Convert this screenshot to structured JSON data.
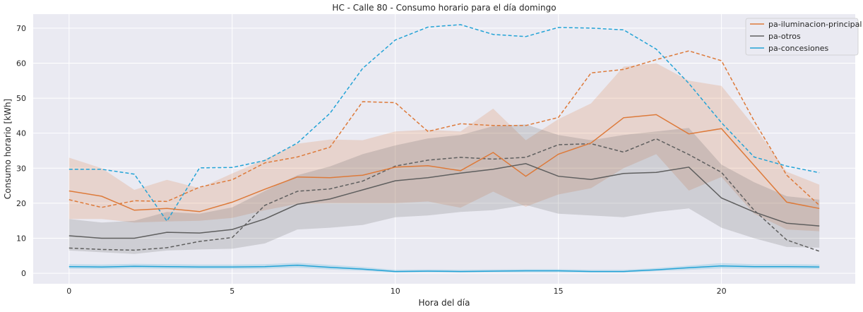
{
  "chart_data": {
    "type": "line",
    "title": "HC - Calle 80 - Consumo horario para el día domingo",
    "xlabel": "Hora del día",
    "ylabel": "Consumo horario [kWh]",
    "xlim": [
      -1.1,
      24.1
    ],
    "ylim": [
      -3,
      74
    ],
    "xticks": [
      0,
      5,
      10,
      15,
      20
    ],
    "yticks": [
      0,
      10,
      20,
      30,
      40,
      50,
      60,
      70
    ],
    "grid": true,
    "legend_position": "top-right",
    "x": [
      0,
      1,
      2,
      3,
      4,
      5,
      6,
      7,
      8,
      9,
      10,
      11,
      12,
      13,
      14,
      15,
      16,
      17,
      18,
      19,
      20,
      21,
      22,
      23
    ],
    "series": [
      {
        "name": "pa-iluminacion-principal",
        "color": "#dd7a3a",
        "mean": [
          23.5,
          22.0,
          18.0,
          18.5,
          17.6,
          20.3,
          24.0,
          27.5,
          27.3,
          28.0,
          30.3,
          30.7,
          29.3,
          34.5,
          27.7,
          34.0,
          37.2,
          44.4,
          45.3,
          39.8,
          41.3,
          30.8,
          20.3,
          18.5
        ],
        "ci_low": [
          15.5,
          15.5,
          14.5,
          14.8,
          15.0,
          15.8,
          18.0,
          19.8,
          20.0,
          20.0,
          20.0,
          20.5,
          18.7,
          23.3,
          19.0,
          22.5,
          24.3,
          30.0,
          34.0,
          23.6,
          27.5,
          17.0,
          12.5,
          12.0
        ],
        "ci_high": [
          33.0,
          30.0,
          23.8,
          26.7,
          24.3,
          28.5,
          32.5,
          37.0,
          38.2,
          38.0,
          40.5,
          41.0,
          40.5,
          47.0,
          38.0,
          44.0,
          48.5,
          59.0,
          60.0,
          55.0,
          53.5,
          42.0,
          29.0,
          25.3
        ],
        "dashed": [
          21.0,
          18.8,
          20.7,
          20.5,
          24.6,
          26.7,
          31.5,
          33.2,
          36.0,
          49.0,
          48.7,
          40.5,
          42.7,
          42.2,
          42.2,
          44.5,
          57.2,
          58.2,
          61.0,
          63.5,
          60.7,
          43.5,
          28.0,
          19.4
        ]
      },
      {
        "name": "pa-otros",
        "color": "#5f5f5f",
        "mean": [
          10.7,
          10.0,
          10.0,
          11.7,
          11.5,
          12.5,
          15.5,
          19.7,
          21.2,
          23.8,
          26.4,
          27.3,
          28.6,
          29.7,
          31.3,
          27.7,
          26.8,
          28.5,
          28.8,
          30.3,
          21.5,
          17.5,
          14.3,
          13.5
        ],
        "ci_low": [
          6.5,
          6.0,
          5.5,
          6.5,
          6.8,
          7.0,
          8.5,
          12.5,
          13.0,
          13.8,
          16.0,
          16.5,
          17.5,
          18.0,
          19.5,
          17.0,
          16.5,
          16.0,
          17.5,
          18.5,
          13.0,
          10.0,
          7.5,
          7.3
        ],
        "ci_high": [
          15.5,
          14.5,
          15.0,
          17.5,
          17.0,
          18.8,
          23.5,
          28.0,
          30.5,
          34.0,
          36.5,
          38.5,
          39.5,
          42.0,
          42.5,
          39.5,
          38.0,
          39.5,
          40.5,
          41.5,
          31.0,
          26.0,
          22.0,
          21.0
        ],
        "dashed": [
          7.2,
          6.8,
          6.6,
          7.3,
          9.1,
          10.2,
          19.4,
          23.4,
          24.1,
          26.3,
          30.6,
          32.3,
          33.1,
          32.6,
          33.1,
          36.7,
          37.0,
          34.6,
          38.4,
          33.9,
          28.8,
          18.0,
          9.5,
          6.3
        ]
      },
      {
        "name": "pa-concesiones",
        "color": "#23a3d6",
        "mean": [
          1.9,
          1.8,
          2.0,
          1.9,
          1.8,
          1.8,
          1.9,
          2.3,
          1.7,
          1.2,
          0.5,
          0.6,
          0.5,
          0.6,
          0.7,
          0.7,
          0.5,
          0.5,
          1.0,
          1.6,
          2.1,
          1.9,
          1.9,
          1.8
        ],
        "ci_low": [
          1.3,
          1.2,
          1.4,
          1.3,
          1.2,
          1.2,
          1.3,
          1.6,
          1.1,
          0.7,
          0.2,
          0.3,
          0.2,
          0.3,
          0.3,
          0.3,
          0.2,
          0.2,
          0.6,
          1.0,
          1.4,
          1.3,
          1.3,
          1.2
        ],
        "ci_high": [
          2.6,
          2.5,
          2.7,
          2.6,
          2.5,
          2.5,
          2.6,
          3.0,
          2.4,
          1.8,
          1.0,
          1.1,
          1.0,
          1.1,
          1.2,
          1.2,
          1.0,
          1.0,
          1.5,
          2.2,
          2.9,
          2.6,
          2.6,
          2.5
        ],
        "dashed": [
          29.7,
          29.7,
          28.3,
          14.9,
          30.1,
          30.2,
          32.2,
          37.2,
          45.7,
          58.5,
          66.6,
          70.3,
          71.0,
          68.2,
          67.6,
          70.2,
          70.0,
          69.5,
          64.0,
          54.2,
          43.0,
          33.2,
          30.6,
          28.7
        ]
      }
    ]
  }
}
